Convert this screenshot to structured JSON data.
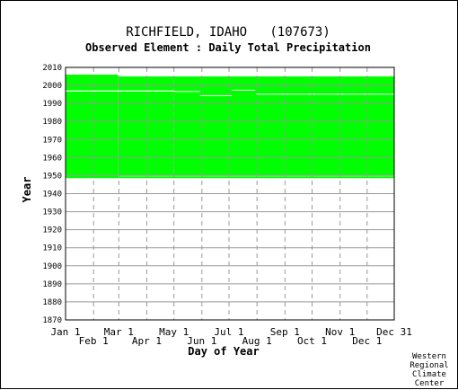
{
  "chart_data": {
    "type": "heatmap",
    "title": "RICHFIELD, IDAHO   (107673)",
    "subtitle": "Observed Element : Daily Total Precipitation",
    "xlabel": "Day of Year",
    "ylabel": "Year",
    "xlim": [
      1,
      365
    ],
    "ylim": [
      1870,
      2010
    ],
    "grid": true,
    "x_ticks_upper": [
      {
        "day": 1,
        "label": "Jan 1"
      },
      {
        "day": 60,
        "label": "Mar 1"
      },
      {
        "day": 121,
        "label": "May 1"
      },
      {
        "day": 182,
        "label": "Jul 1"
      },
      {
        "day": 244,
        "label": "Sep 1"
      },
      {
        "day": 305,
        "label": "Nov 1"
      },
      {
        "day": 365,
        "label": "Dec 31"
      }
    ],
    "x_ticks_lower": [
      {
        "day": 32,
        "label": "Feb 1"
      },
      {
        "day": 91,
        "label": "Apr 1"
      },
      {
        "day": 152,
        "label": "Jun 1"
      },
      {
        "day": 213,
        "label": "Aug 1"
      },
      {
        "day": 274,
        "label": "Oct 1"
      },
      {
        "day": 335,
        "label": "Dec 1"
      }
    ],
    "y_ticks": [
      1870,
      1880,
      1890,
      1900,
      1910,
      1920,
      1930,
      1940,
      1950,
      1960,
      1970,
      1980,
      1990,
      2000,
      2010
    ],
    "fill_color": "#00ff00",
    "grid_color": "#999999",
    "observed_periods": [
      {
        "day_start": 1,
        "day_end": 59,
        "year_start": 1949,
        "year_end": 2006
      },
      {
        "day_start": 59,
        "day_end": 121,
        "year_start": 1950,
        "year_end": 2005
      },
      {
        "day_start": 121,
        "day_end": 365,
        "year_start": 1950,
        "year_end": 2005
      },
      {
        "day_start": 1,
        "day_end": 365,
        "year_start": 1948.6,
        "year_end": 1949.6
      }
    ],
    "missing_periods": [
      {
        "day_start": 1,
        "day_end": 121,
        "year_start": 1996.6,
        "year_end": 1997.2
      },
      {
        "day_start": 121,
        "day_end": 150,
        "year_start": 1996.6,
        "year_end": 1996.9
      },
      {
        "day_start": 150,
        "day_end": 185,
        "year_start": 1994.3,
        "year_end": 1994.6
      },
      {
        "day_start": 212,
        "day_end": 365,
        "year_start": 1995.1,
        "year_end": 1995.4
      },
      {
        "day_start": 185,
        "day_end": 211,
        "year_start": 1997.3,
        "year_end": 1997.6
      }
    ]
  },
  "credit": {
    "line1": "Western",
    "line2": "Regional",
    "line3": "Climate",
    "line4": "Center"
  }
}
